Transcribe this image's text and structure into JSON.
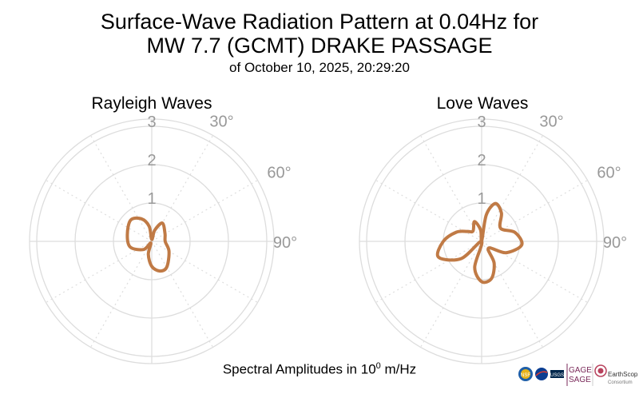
{
  "title_line1": "Surface-Wave Radiation Pattern at 0.04Hz for",
  "title_line2": "MW 7.7 (GCMT) DRAKE PASSAGE",
  "subtitle": "of October 10, 2025, 20:29:20",
  "footer": {
    "prefix": "Spectral Amplitudes in 10",
    "exponent": "0",
    "suffix": " m/Hz"
  },
  "logos": {
    "gage": "GAGE",
    "sage": "SAGE",
    "earthscope": "EarthScope",
    "consortium": "Consortium",
    "usgs": "USGS",
    "nsf": "NSF"
  },
  "colors": {
    "pattern": "#c07a45",
    "grid": "#dddddd",
    "tick_text": "#999999"
  },
  "chart_data": [
    {
      "type": "polar",
      "title": "Rayleigh Waves",
      "r_ticks": [
        "1",
        "2",
        "3"
      ],
      "r_max": 3,
      "theta_ticks": [
        "30°",
        "60°",
        "90°"
      ],
      "theta_zero": "north",
      "theta_direction": "clockwise",
      "series": [
        {
          "values": [
            {
              "theta": 0,
              "r": 0.05
            },
            {
              "theta": 15,
              "r": 0.3
            },
            {
              "theta": 30,
              "r": 0.55
            },
            {
              "theta": 60,
              "r": 0.4
            },
            {
              "theta": 90,
              "r": 0.35
            },
            {
              "theta": 120,
              "r": 0.52
            },
            {
              "theta": 150,
              "r": 0.78
            },
            {
              "theta": 165,
              "r": 0.8
            },
            {
              "theta": 180,
              "r": 0.65
            },
            {
              "theta": 195,
              "r": 0.35
            },
            {
              "theta": 210,
              "r": 0.05
            },
            {
              "theta": 225,
              "r": 0.3
            },
            {
              "theta": 255,
              "r": 0.58
            },
            {
              "theta": 285,
              "r": 0.66
            },
            {
              "theta": 315,
              "r": 0.78
            },
            {
              "theta": 335,
              "r": 0.65
            },
            {
              "theta": 350,
              "r": 0.4
            }
          ]
        }
      ]
    },
    {
      "type": "polar",
      "title": "Love Waves",
      "r_ticks": [
        "1",
        "2",
        "3"
      ],
      "r_max": 3,
      "theta_ticks": [
        "30°",
        "60°",
        "90°"
      ],
      "theta_zero": "north",
      "theta_direction": "clockwise",
      "series": [
        {
          "values": [
            {
              "theta": 0,
              "r": 0.0
            },
            {
              "theta": 10,
              "r": 0.7
            },
            {
              "theta": 20,
              "r": 1.05
            },
            {
              "theta": 35,
              "r": 0.9
            },
            {
              "theta": 55,
              "r": 0.6
            },
            {
              "theta": 75,
              "r": 0.9
            },
            {
              "theta": 95,
              "r": 1.05
            },
            {
              "theta": 115,
              "r": 0.7
            },
            {
              "theta": 135,
              "r": 0.25
            },
            {
              "theta": 150,
              "r": 0.65
            },
            {
              "theta": 165,
              "r": 1.0
            },
            {
              "theta": 180,
              "r": 1.05
            },
            {
              "theta": 195,
              "r": 0.7
            },
            {
              "theta": 210,
              "r": 0.0
            },
            {
              "theta": 230,
              "r": 0.7
            },
            {
              "theta": 250,
              "r": 1.2
            },
            {
              "theta": 270,
              "r": 1.0
            },
            {
              "theta": 290,
              "r": 0.7
            },
            {
              "theta": 305,
              "r": 0.45
            },
            {
              "theta": 320,
              "r": 0.35
            },
            {
              "theta": 340,
              "r": 0.55
            },
            {
              "theta": 355,
              "r": 0.3
            }
          ]
        }
      ]
    }
  ]
}
